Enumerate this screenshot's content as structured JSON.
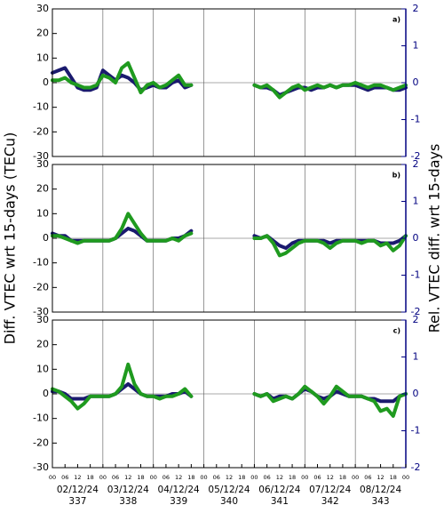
{
  "chart_data": [
    {
      "type": "line",
      "panel_label": "a)",
      "ylim": [
        -30,
        30
      ],
      "yticks": [
        -30,
        -20,
        -10,
        0,
        10,
        20,
        30
      ],
      "y2lim": [
        -2,
        2
      ],
      "y2ticks": [
        -2,
        -1,
        0,
        1,
        2
      ],
      "y2color": "#000080",
      "xlim": [
        0,
        168
      ],
      "grid": true,
      "x": [
        0,
        3,
        6,
        9,
        12,
        15,
        18,
        21,
        24,
        27,
        30,
        33,
        36,
        39,
        42,
        45,
        48,
        51,
        54,
        57,
        60,
        63,
        66,
        69,
        72,
        75,
        78,
        81,
        84,
        87,
        90,
        93,
        96,
        99,
        102,
        105,
        108,
        111,
        114,
        117,
        120,
        123,
        126,
        129,
        132,
        135,
        138,
        141,
        144,
        147,
        150,
        153,
        156,
        159,
        162,
        165,
        168
      ],
      "series": [
        {
          "color": "#1a1a6e",
          "values": [
            4,
            5,
            6,
            2,
            -2,
            -3,
            -3,
            -2,
            5,
            3,
            1,
            3,
            2,
            0,
            -3,
            -2,
            -1,
            -2,
            -2,
            0,
            1,
            -2,
            -1,
            null,
            null,
            null,
            null,
            null,
            null,
            null,
            null,
            null,
            -1,
            -2,
            -2,
            -3,
            -5,
            -4,
            -3,
            -2,
            -2,
            -3,
            -2,
            -2,
            -1,
            -2,
            -1,
            -1,
            -1,
            -2,
            -3,
            -2,
            -2,
            -2,
            -3,
            -3,
            -2
          ]
        },
        {
          "color": "#1f9a1f",
          "values": [
            1,
            1,
            2,
            0,
            -1,
            -2,
            -2,
            -1,
            3,
            2,
            0,
            6,
            8,
            2,
            -4,
            -1,
            0,
            -2,
            -1,
            1,
            3,
            -1,
            -1,
            null,
            null,
            null,
            null,
            null,
            null,
            null,
            null,
            null,
            -1,
            -2,
            -1,
            -3,
            -6,
            -4,
            -2,
            -1,
            -3,
            -2,
            -1,
            -2,
            -1,
            -2,
            -1,
            -1,
            0,
            -1,
            -2,
            -1,
            -1,
            -2,
            -3,
            -2,
            -1
          ]
        }
      ]
    },
    {
      "type": "line",
      "panel_label": "b)",
      "ylim": [
        -30,
        30
      ],
      "yticks": [
        -30,
        -20,
        -10,
        0,
        10,
        20,
        30
      ],
      "y2lim": [
        -2,
        2
      ],
      "y2ticks": [
        -2,
        -1,
        0,
        1,
        2
      ],
      "y2color": "#000080",
      "xlim": [
        0,
        168
      ],
      "grid": true,
      "ylabel": "Diff. VTEC wrt 15-days (TECu)",
      "y2label": "Rel. VTEC diff. wrt 15-days",
      "x": [
        0,
        3,
        6,
        9,
        12,
        15,
        18,
        21,
        24,
        27,
        30,
        33,
        36,
        39,
        42,
        45,
        48,
        51,
        54,
        57,
        60,
        63,
        66,
        69,
        72,
        75,
        78,
        81,
        84,
        87,
        90,
        93,
        96,
        99,
        102,
        105,
        108,
        111,
        114,
        117,
        120,
        123,
        126,
        129,
        132,
        135,
        138,
        141,
        144,
        147,
        150,
        153,
        156,
        159,
        162,
        165,
        168
      ],
      "series": [
        {
          "color": "#1a1a6e",
          "values": [
            2,
            1,
            1,
            -1,
            -1,
            -1,
            -1,
            -1,
            -1,
            -1,
            0,
            2,
            4,
            3,
            1,
            -1,
            -1,
            -1,
            -1,
            0,
            0,
            1,
            3,
            null,
            null,
            null,
            null,
            null,
            null,
            null,
            null,
            null,
            1,
            0,
            1,
            -1,
            -3,
            -4,
            -2,
            -1,
            -1,
            -1,
            -1,
            -1,
            -2,
            -1,
            -1,
            -1,
            -1,
            -1,
            -1,
            -1,
            -2,
            -2,
            -2,
            -1,
            1
          ]
        },
        {
          "color": "#1f9a1f",
          "values": [
            1,
            1,
            0,
            -1,
            -2,
            -1,
            -1,
            -1,
            -1,
            -1,
            0,
            4,
            10,
            6,
            2,
            -1,
            -1,
            -1,
            -1,
            0,
            -1,
            1,
            2,
            null,
            null,
            null,
            null,
            null,
            null,
            null,
            null,
            null,
            0,
            0,
            1,
            -2,
            -7,
            -6,
            -4,
            -2,
            -1,
            -1,
            -1,
            -2,
            -4,
            -2,
            -1,
            -1,
            -1,
            -2,
            -1,
            -1,
            -3,
            -2,
            -5,
            -3,
            1
          ]
        }
      ]
    },
    {
      "type": "line",
      "panel_label": "c)",
      "ylim": [
        -30,
        30
      ],
      "yticks": [
        -30,
        -20,
        -10,
        0,
        10,
        20,
        30
      ],
      "y2lim": [
        -2,
        2
      ],
      "y2ticks": [
        -2,
        -1,
        0,
        1,
        2
      ],
      "y2color": "#000080",
      "xlim": [
        0,
        168
      ],
      "grid": true,
      "x": [
        0,
        3,
        6,
        9,
        12,
        15,
        18,
        21,
        24,
        27,
        30,
        33,
        36,
        39,
        42,
        45,
        48,
        51,
        54,
        57,
        60,
        63,
        66,
        69,
        72,
        75,
        78,
        81,
        84,
        87,
        90,
        93,
        96,
        99,
        102,
        105,
        108,
        111,
        114,
        117,
        120,
        123,
        126,
        129,
        132,
        135,
        138,
        141,
        144,
        147,
        150,
        153,
        156,
        159,
        162,
        165,
        168
      ],
      "xticks": [
        {
          "value": 0,
          "label": "00"
        },
        {
          "value": 6,
          "label": "06"
        },
        {
          "value": 12,
          "label": "12"
        },
        {
          "value": 18,
          "label": "18"
        },
        {
          "value": 24,
          "label": "00"
        },
        {
          "value": 30,
          "label": "06"
        },
        {
          "value": 36,
          "label": "12"
        },
        {
          "value": 42,
          "label": "18"
        },
        {
          "value": 48,
          "label": "00"
        },
        {
          "value": 54,
          "label": "06"
        },
        {
          "value": 60,
          "label": "12"
        },
        {
          "value": 66,
          "label": "18"
        },
        {
          "value": 72,
          "label": "00"
        },
        {
          "value": 78,
          "label": "06"
        },
        {
          "value": 84,
          "label": "12"
        },
        {
          "value": 90,
          "label": "18"
        },
        {
          "value": 96,
          "label": "00"
        },
        {
          "value": 102,
          "label": "06"
        },
        {
          "value": 108,
          "label": "12"
        },
        {
          "value": 114,
          "label": "18"
        },
        {
          "value": 120,
          "label": "00"
        },
        {
          "value": 126,
          "label": "06"
        },
        {
          "value": 132,
          "label": "12"
        },
        {
          "value": 138,
          "label": "18"
        },
        {
          "value": 144,
          "label": "00"
        },
        {
          "value": 150,
          "label": "06"
        },
        {
          "value": 156,
          "label": "12"
        },
        {
          "value": 162,
          "label": "18"
        },
        {
          "value": 168,
          "label": "00"
        }
      ],
      "day_labels": [
        "02/12/24",
        "03/12/24",
        "04/12/24",
        "05/12/24",
        "06/12/24",
        "07/12/24",
        "08/12/24"
      ],
      "day_numbers": [
        337,
        338,
        339,
        340,
        341,
        342,
        343
      ],
      "series": [
        {
          "color": "#1a1a6e",
          "values": [
            1,
            1,
            0,
            -2,
            -2,
            -2,
            -1,
            -1,
            -1,
            -1,
            0,
            2,
            4,
            2,
            0,
            -1,
            -1,
            -1,
            -1,
            0,
            0,
            1,
            -1,
            null,
            null,
            null,
            null,
            null,
            null,
            null,
            null,
            null,
            0,
            -1,
            0,
            -2,
            -1,
            -1,
            -2,
            0,
            2,
            1,
            -1,
            -2,
            -1,
            1,
            0,
            -1,
            -1,
            -1,
            -2,
            -2,
            -3,
            -3,
            -3,
            -1,
            0
          ]
        },
        {
          "color": "#1f9a1f",
          "values": [
            2,
            1,
            -1,
            -3,
            -6,
            -4,
            -1,
            -1,
            -1,
            -1,
            0,
            3,
            12,
            4,
            0,
            -1,
            -1,
            -2,
            -1,
            -1,
            0,
            2,
            -1,
            null,
            null,
            null,
            null,
            null,
            null,
            null,
            null,
            null,
            0,
            -1,
            0,
            -3,
            -2,
            -1,
            -2,
            0,
            3,
            1,
            -1,
            -4,
            -1,
            3,
            1,
            -1,
            -1,
            -1,
            -2,
            -3,
            -7,
            -6,
            -9,
            -1,
            0
          ]
        }
      ]
    }
  ]
}
